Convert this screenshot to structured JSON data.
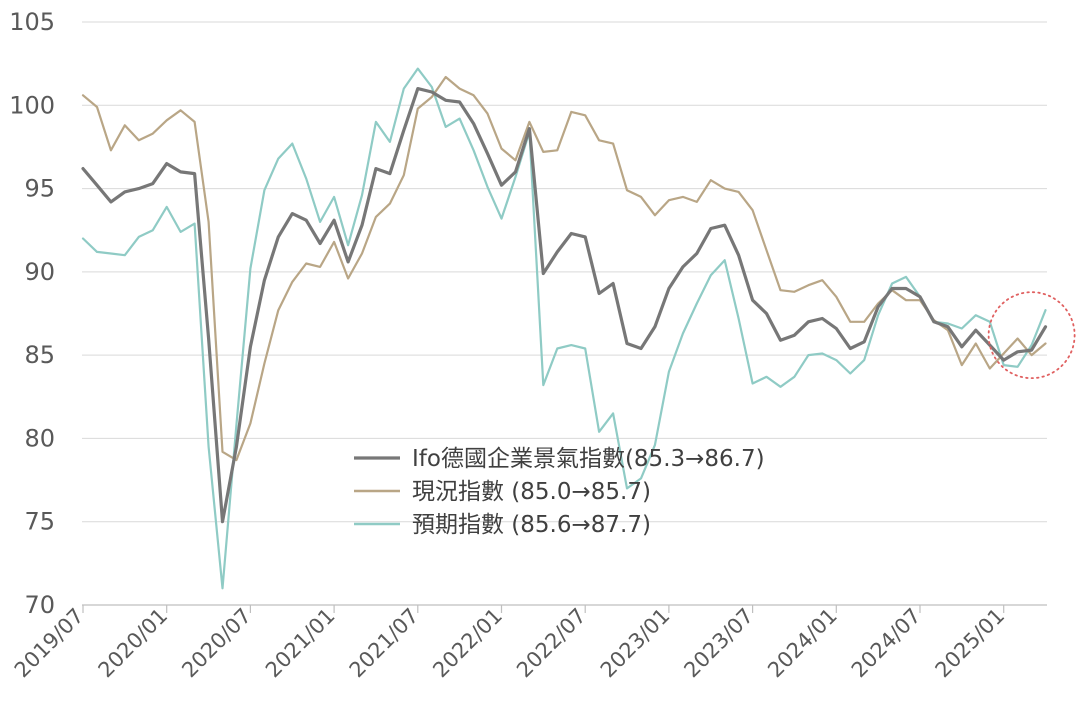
{
  "chart_data": {
    "type": "line",
    "ylim": [
      70,
      105
    ],
    "yticks": [
      "105",
      "100",
      "95",
      "90",
      "85",
      "80",
      "75",
      "70"
    ],
    "xtick_labels": [
      "2019/07",
      "2020/01",
      "2020/07",
      "2021/01",
      "2021/07",
      "2022/01",
      "2022/07",
      "2023/01",
      "2023/07",
      "2024/01",
      "2024/07",
      "2025/01"
    ],
    "x_range": [
      "2019-07",
      "2025-03"
    ],
    "grid": "horizontal",
    "legend_position": "center",
    "highlight": {
      "shape": "dotted-circle",
      "color": "#e06060",
      "x_range": [
        "2024-12",
        "2025-03"
      ]
    },
    "series": [
      {
        "name": "Ifo德國企業景氣指數(85.3→86.7)",
        "color": "#777777",
        "values": [
          96.2,
          95.2,
          94.2,
          94.8,
          95.0,
          95.3,
          96.5,
          96.0,
          95.9,
          86.0,
          75.0,
          79.5,
          85.5,
          89.5,
          92.1,
          93.5,
          93.1,
          91.7,
          93.1,
          90.6,
          92.8,
          96.2,
          95.9,
          98.5,
          101.0,
          100.8,
          100.3,
          100.2,
          98.9,
          97.1,
          95.2,
          96.0,
          98.6,
          89.9,
          91.2,
          92.3,
          92.1,
          88.7,
          89.3,
          85.7,
          85.4,
          86.7,
          89.0,
          90.3,
          91.1,
          92.6,
          92.8,
          91.0,
          88.3,
          87.5,
          85.9,
          86.2,
          87.0,
          87.2,
          86.6,
          85.4,
          85.8,
          87.9,
          89.0,
          89.0,
          88.5,
          87.0,
          86.7,
          85.5,
          86.5,
          85.6,
          84.7,
          85.2,
          85.3,
          86.7
        ]
      },
      {
        "name": "現況指數 (85.0→85.7)",
        "color": "#b9a686",
        "values": [
          100.6,
          99.9,
          97.3,
          98.8,
          97.9,
          98.3,
          99.1,
          99.7,
          99.0,
          93.0,
          79.2,
          78.7,
          80.9,
          84.5,
          87.7,
          89.4,
          90.5,
          90.3,
          91.8,
          89.6,
          91.1,
          93.3,
          94.1,
          95.8,
          99.8,
          100.5,
          101.7,
          101.0,
          100.6,
          99.5,
          97.4,
          96.7,
          99.0,
          97.2,
          97.3,
          99.6,
          99.4,
          97.9,
          97.7,
          94.9,
          94.5,
          93.4,
          94.3,
          94.5,
          94.2,
          95.5,
          95.0,
          94.8,
          93.7,
          91.3,
          88.9,
          88.8,
          89.2,
          89.5,
          88.5,
          87.0,
          87.0,
          88.1,
          88.9,
          88.3,
          88.3,
          87.1,
          86.5,
          84.4,
          85.7,
          84.2,
          85.1,
          86.0,
          85.0,
          85.7
        ]
      },
      {
        "name": "預期指數 (85.6→87.7)",
        "color": "#8fcbc5",
        "values": [
          92.0,
          91.2,
          91.1,
          91.0,
          92.1,
          92.5,
          93.9,
          92.4,
          92.9,
          79.5,
          71.0,
          80.8,
          90.2,
          94.9,
          96.8,
          97.7,
          95.6,
          93.0,
          94.5,
          91.6,
          94.6,
          99.0,
          97.8,
          101.0,
          102.2,
          101.1,
          98.7,
          99.2,
          97.3,
          95.1,
          93.2,
          95.7,
          98.4,
          83.2,
          85.4,
          85.6,
          85.4,
          80.4,
          81.5,
          77.0,
          77.6,
          79.6,
          84.0,
          86.3,
          88.1,
          89.8,
          90.7,
          87.2,
          83.3,
          83.7,
          83.1,
          83.7,
          85.0,
          85.1,
          84.7,
          83.9,
          84.7,
          87.4,
          89.3,
          89.7,
          88.5,
          87.0,
          86.9,
          86.6,
          87.4,
          87.0,
          84.4,
          84.3,
          85.6,
          87.7
        ]
      }
    ]
  }
}
